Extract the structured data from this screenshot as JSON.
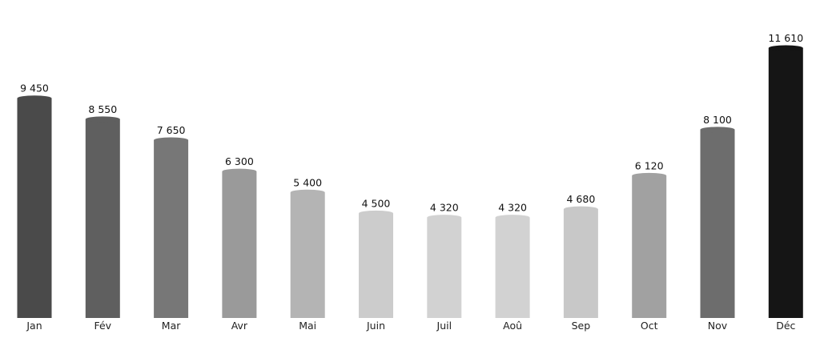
{
  "chart_data": {
    "type": "bar",
    "title": "",
    "xlabel": "",
    "ylabel": "",
    "ylim": [
      0,
      11610
    ],
    "grid": false,
    "categories": [
      "Jan",
      "Fév",
      "Mar",
      "Avr",
      "Mai",
      "Juin",
      "Juil",
      "Aoû",
      "Sep",
      "Oct",
      "Nov",
      "Déc"
    ],
    "values": [
      9450,
      8550,
      7650,
      6300,
      5400,
      4500,
      4320,
      4320,
      4680,
      6120,
      8100,
      11610
    ],
    "value_labels": [
      "9 450",
      "8 550",
      "7 650",
      "6 300",
      "5 400",
      "4 500",
      "4 320",
      "4 320",
      "4 680",
      "6 120",
      "8 100",
      "11 610"
    ],
    "colors": [
      "#4a4a4a",
      "#5f5f5f",
      "#777777",
      "#9a9a9a",
      "#b4b4b4",
      "#cccccc",
      "#d2d2d2",
      "#d2d2d2",
      "#c8c8c8",
      "#a1a1a1",
      "#6d6d6d",
      "#151515"
    ]
  }
}
